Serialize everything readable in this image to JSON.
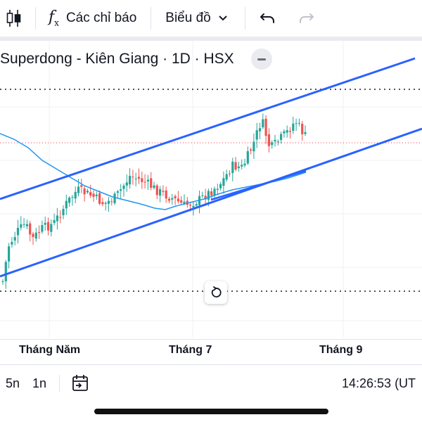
{
  "toolbar": {
    "indicators_label": "Các chỉ báo",
    "chart_type_label": "Biểu đồ"
  },
  "symbol": {
    "title": "Superdong - Kiên Giang · 1D · HSX"
  },
  "time_axis": {
    "labels": [
      "Tháng Năm",
      "Tháng 7",
      "Tháng 9"
    ]
  },
  "bottom": {
    "range_5d": "5n",
    "range_1m": "1n",
    "clock": "14:26:53 (UT"
  },
  "colors": {
    "up": "#26a69a",
    "down": "#ef5350",
    "channel": "#2962ff",
    "ma": "#2196f3",
    "last_price_line": "#f23645"
  }
}
